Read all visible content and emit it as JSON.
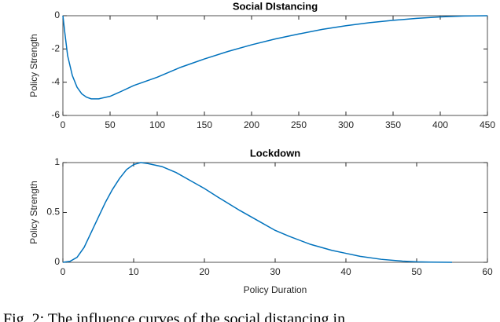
{
  "chart_data": [
    {
      "type": "line",
      "title": "Social DIstancing",
      "y_label": "Policy Strength",
      "x": [
        0,
        2,
        5,
        10,
        15,
        20,
        25,
        30,
        38,
        50,
        60,
        75,
        100,
        125,
        150,
        175,
        200,
        225,
        250,
        275,
        300,
        325,
        350,
        375,
        400,
        425,
        450
      ],
      "series": [
        {
          "color": "#0072bd",
          "values": [
            0,
            -1.0,
            -2.4,
            -3.6,
            -4.3,
            -4.7,
            -4.9,
            -5.0,
            -5.0,
            -4.85,
            -4.6,
            -4.2,
            -3.7,
            -3.1,
            -2.6,
            -2.15,
            -1.75,
            -1.4,
            -1.1,
            -0.82,
            -0.6,
            -0.42,
            -0.28,
            -0.16,
            -0.07,
            -0.02,
            0
          ]
        }
      ],
      "xlim": [
        0,
        450
      ],
      "xticks": [
        0,
        50,
        100,
        150,
        200,
        250,
        300,
        350,
        400,
        450
      ],
      "ylim": [
        -6,
        0
      ],
      "yticks": [
        -6,
        -4,
        -2,
        0
      ]
    },
    {
      "type": "line",
      "title": "Lockdown",
      "y_label": "Policy Strength",
      "x_label": "Policy Duration",
      "x": [
        0,
        1,
        2,
        3,
        4,
        5,
        6,
        7,
        8,
        9,
        10,
        11,
        12,
        14,
        16,
        18,
        20,
        22,
        25,
        28,
        30,
        32,
        35,
        38,
        40,
        42,
        45,
        48,
        50,
        52,
        55
      ],
      "series": [
        {
          "color": "#0072bd",
          "values": [
            0,
            0.01,
            0.05,
            0.15,
            0.3,
            0.45,
            0.6,
            0.73,
            0.84,
            0.93,
            0.98,
            1.0,
            0.99,
            0.96,
            0.9,
            0.82,
            0.74,
            0.65,
            0.52,
            0.4,
            0.32,
            0.26,
            0.18,
            0.12,
            0.09,
            0.06,
            0.03,
            0.012,
            0.005,
            0.002,
            0
          ]
        }
      ],
      "xlim": [
        0,
        60
      ],
      "xticks": [
        0,
        10,
        20,
        30,
        40,
        50,
        60
      ],
      "ylim": [
        0,
        1
      ],
      "yticks": [
        0,
        0.5,
        1
      ]
    }
  ],
  "caption": "Fig. 2: The influence curves of the social distancing in"
}
